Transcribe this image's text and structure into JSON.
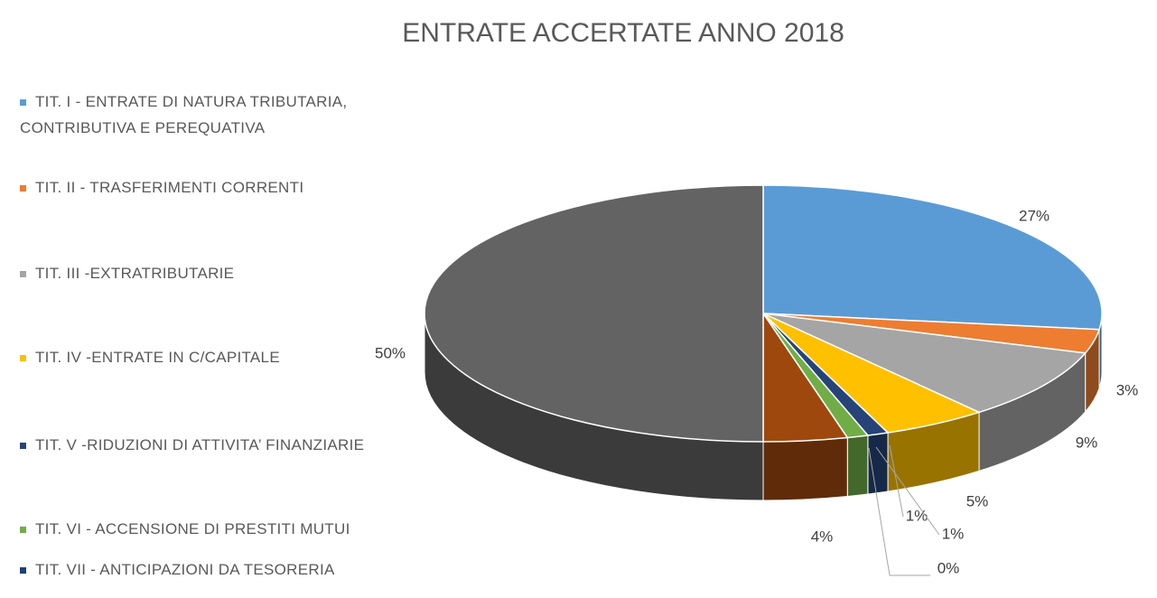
{
  "chart_data": {
    "type": "pie3d",
    "title": "ENTRATE ACCERTATE ANNO 2018",
    "categories": [
      "TIT. I - ENTRATE DI NATURA TRIBUTARIA, CONTRIBUTIVA E PEREQUATIVA",
      "TIT. II - TRASFERIMENTI CORRENTI",
      "TIT. III -EXTRATRIBUTARIE",
      "TIT. IV -ENTRATE IN C/CAPITALE",
      "TIT. V -RIDUZIONI DI ATTIVITA’ FINANZIARIE",
      "TIT. VI - ACCENSIONE DI PRESTITI MUTUI",
      "TIT. VII - ANTICIPAZIONI DA TESORERIA",
      null,
      null
    ],
    "values": [
      27,
      3,
      9,
      5,
      1,
      1,
      0,
      4,
      50
    ],
    "value_labels": [
      "27%",
      "3%",
      "9%",
      "5%",
      "1%",
      "1%",
      "0%",
      "4%",
      "50%"
    ],
    "colors": [
      "#5b9bd5",
      "#ed7d31",
      "#a5a5a5",
      "#ffc000",
      "#264478",
      "#70ad47",
      "#1f3f73",
      "#9e480e",
      "#636363"
    ]
  }
}
